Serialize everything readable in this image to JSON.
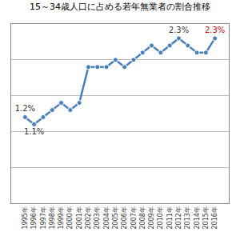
{
  "chart_data": {
    "type": "line",
    "title": "15～34歳人口に占める若年無業者の割合推移",
    "categories": [
      "1995年",
      "1996年",
      "1997年",
      "1998年",
      "1999年",
      "2000年",
      "2001年",
      "2002年",
      "2003年",
      "2004年",
      "2005年",
      "2006年",
      "2007年",
      "2008年",
      "2009年",
      "2010年",
      "2011年",
      "2012年",
      "2013年",
      "2014年",
      "2015年",
      "2016年"
    ],
    "values": [
      1.2,
      1.1,
      1.2,
      1.3,
      1.4,
      1.3,
      1.4,
      1.9,
      1.9,
      1.9,
      2.0,
      1.9,
      2.0,
      2.1,
      2.2,
      2.1,
      2.2,
      2.3,
      2.2,
      2.1,
      2.1,
      2.3
    ],
    "value_labels": [
      "1.2%",
      "1.1%",
      null,
      null,
      null,
      null,
      null,
      null,
      null,
      null,
      null,
      null,
      null,
      null,
      null,
      null,
      null,
      "2.3%",
      null,
      null,
      null,
      "2.3%"
    ],
    "color": "#4a7ebb",
    "marker": "circle",
    "ylim": [
      0,
      2.5
    ],
    "yticks": [
      0,
      0.5,
      1,
      1.5,
      2,
      2.5
    ],
    "grid": true,
    "data_labels": true,
    "tick_labels": "x"
  }
}
